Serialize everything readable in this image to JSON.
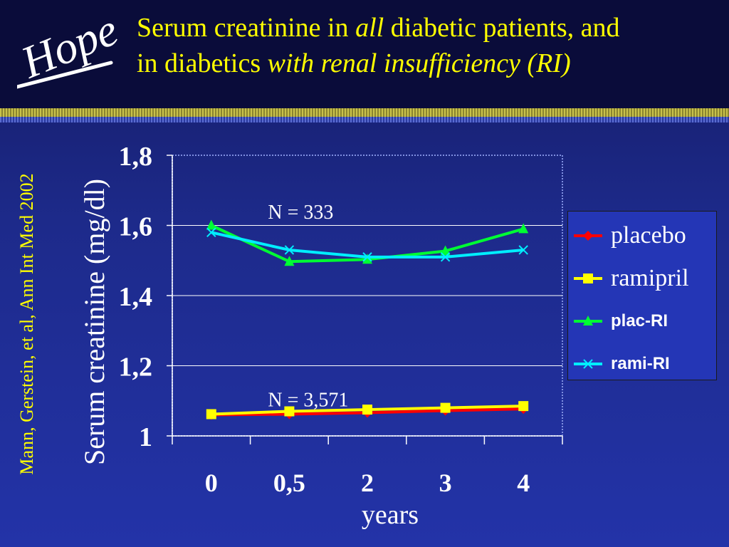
{
  "header": {
    "logo_text": "Hope",
    "title_parts": [
      {
        "text": "Serum creatinine in ",
        "italic": false
      },
      {
        "text": "all",
        "italic": true
      },
      {
        "text": " diabetic patients, and",
        "italic": false
      },
      {
        "text": "in diabetics ",
        "italic": false,
        "break_before": true
      },
      {
        "text": "with renal insufficiency  (RI)",
        "italic": true
      }
    ]
  },
  "citation": "Mann, Gerstein, et al, Ann Int Med 2002",
  "colors": {
    "text_yellow": "#ffff00",
    "placebo": "#ff0000",
    "ramipril": "#ffff00",
    "plac_ri": "#00ff33",
    "rami_ri": "#00eeff"
  },
  "chart_data": {
    "type": "line",
    "categories": [
      "0",
      "0,5",
      "2",
      "3",
      "4"
    ],
    "ylabel": "Serum creatinine (mg/dl)",
    "xlabel": "years",
    "ylim": [
      1.0,
      1.8
    ],
    "yticks": [
      "1",
      "1,2",
      "1,4",
      "1,6",
      "1,8"
    ],
    "ytick_values": [
      1.0,
      1.2,
      1.4,
      1.6,
      1.8
    ],
    "grid": true,
    "legend_position": "right",
    "annotations": [
      {
        "text": "N = 333",
        "category_index": 1,
        "y": 1.64
      },
      {
        "text": "N = 3,571",
        "category_index": 1,
        "y": 1.105
      }
    ],
    "series": [
      {
        "name": "placebo",
        "marker": "diamond",
        "color": "#ff0000",
        "values": [
          1.06,
          1.062,
          1.066,
          1.072,
          1.077
        ]
      },
      {
        "name": "ramipril",
        "marker": "square",
        "color": "#ffff00",
        "values": [
          1.062,
          1.07,
          1.075,
          1.08,
          1.085
        ]
      },
      {
        "name": "plac-RI",
        "marker": "triangle",
        "color": "#00ff33",
        "values": [
          1.6,
          1.497,
          1.503,
          1.527,
          1.59
        ]
      },
      {
        "name": "rami-RI",
        "marker": "x",
        "color": "#00eeff",
        "values": [
          1.58,
          1.53,
          1.51,
          1.51,
          1.53
        ]
      }
    ]
  }
}
